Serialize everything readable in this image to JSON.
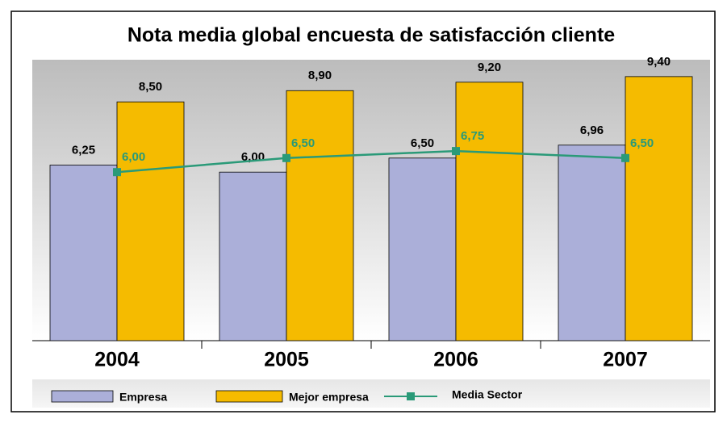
{
  "chart_data": {
    "type": "bar",
    "title": "Nota media global encuesta de satisfacción cliente",
    "categories": [
      "2004",
      "2005",
      "2006",
      "2007"
    ],
    "ylim": [
      0,
      10
    ],
    "series": [
      {
        "name": "Empresa",
        "type": "bar",
        "color": "#abafd9",
        "values": [
          6.25,
          6.0,
          6.5,
          6.96
        ],
        "value_labels": [
          "6,25",
          "6,00",
          "6,50",
          "6,96"
        ]
      },
      {
        "name": "Mejor empresa",
        "type": "bar",
        "color": "#f5bb00",
        "values": [
          8.5,
          8.9,
          9.2,
          9.4
        ],
        "value_labels": [
          "8,50",
          "8,90",
          "9,20",
          "9,40"
        ]
      },
      {
        "name": "Media Sector",
        "type": "line",
        "color": "#2a9a78",
        "values": [
          6.0,
          6.5,
          6.75,
          6.5
        ],
        "value_labels": [
          "6,00",
          "6,50",
          "6,75",
          "6,50"
        ]
      }
    ]
  }
}
